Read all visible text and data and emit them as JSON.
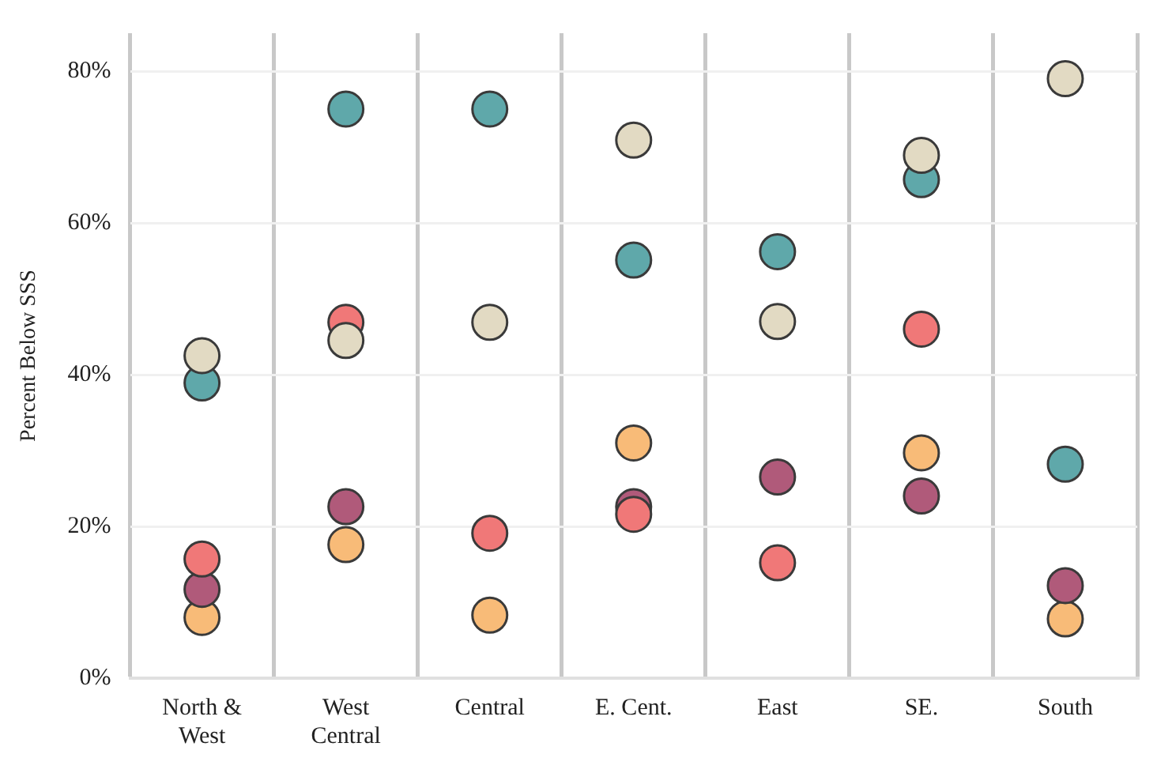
{
  "chart_data": {
    "type": "scatter",
    "ylabel": "Percent Below SSS",
    "categories": [
      "North & West",
      "West Central",
      "Central",
      "E. Cent.",
      "East",
      "SE.",
      "South"
    ],
    "ylim": [
      0,
      85
    ],
    "yticks": [
      {
        "value": 0,
        "label": "0%"
      },
      {
        "value": 20,
        "label": "20%"
      },
      {
        "value": 40,
        "label": "40%"
      },
      {
        "value": 60,
        "label": "60%"
      },
      {
        "value": 80,
        "label": "80%"
      }
    ],
    "grid": true,
    "legend": false,
    "marker": "circle",
    "series": [
      {
        "color": "#e2dac3",
        "values": [
          42.5,
          44.5,
          46.9,
          70.9,
          47.0,
          68.9,
          79.0
        ]
      },
      {
        "color": "#5fa8aa",
        "values": [
          38.9,
          75.0,
          75.0,
          55.1,
          56.2,
          65.7,
          28.2
        ]
      },
      {
        "color": "#f07878",
        "values": [
          15.7,
          46.9,
          19.1,
          21.6,
          15.2,
          46.0,
          null
        ]
      },
      {
        "color": "#b05a7a",
        "values": [
          11.7,
          22.6,
          null,
          22.6,
          26.5,
          24.0,
          12.2
        ]
      },
      {
        "color": "#f8bb78",
        "values": [
          8.0,
          17.6,
          8.3,
          31.0,
          null,
          29.7,
          7.8
        ]
      }
    ]
  }
}
